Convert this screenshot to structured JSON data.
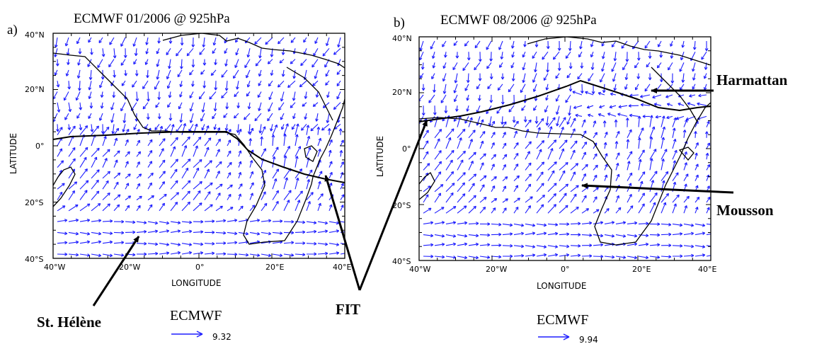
{
  "colors": {
    "vector": "#1f1fff",
    "coast": "#000000",
    "itf_line": "#000000",
    "frame": "#000000",
    "background": "#ffffff"
  },
  "panels": [
    {
      "label": "a)",
      "title": "ECMWF 01/2006 @ 925hPa",
      "ylabel": "LATITUDE",
      "xlabel": "LONGITUDE",
      "yticks": [
        "40°N",
        "20°N",
        "0°",
        "20°S",
        "40°S"
      ],
      "xticks": [
        "40°W",
        "20°W",
        "0°",
        "20°E",
        "40°E"
      ],
      "ref_name": "ECMWF",
      "ref_value": "9.32"
    },
    {
      "label": "b)",
      "title": "ECMWF 08/2006 @ 925hPa",
      "ylabel": "LATITUDE",
      "xlabel": "LONGITUDE",
      "yticks": [
        "40°N",
        "20°N",
        "0°",
        "20°S",
        "40°S"
      ],
      "xticks": [
        "40°W",
        "20°W",
        "0°",
        "20°E",
        "40°E"
      ],
      "ref_name": "ECMWF",
      "ref_value": "9.94"
    }
  ],
  "annotations": {
    "st_helene": "St. Hélène",
    "fit": "FIT",
    "harmattan": "Harmattan",
    "mousson": "Mousson"
  }
}
